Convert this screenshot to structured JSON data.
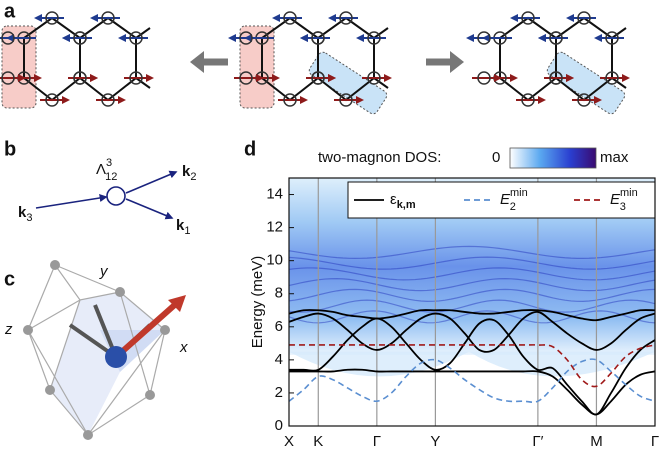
{
  "panels": {
    "a": "a",
    "b": "b",
    "c": "c",
    "d": "d"
  },
  "diagram_b": {
    "vertex": {
      "symbol": "Λ",
      "sup": "3",
      "sub": "12"
    },
    "k3": {
      "symbol": "k",
      "sub": "3"
    },
    "k2": {
      "symbol": "k",
      "sub": "2"
    },
    "k1": {
      "symbol": "k",
      "sub": "1"
    }
  },
  "diagram_c": {
    "y": "y",
    "z": "z",
    "x": "x"
  },
  "chart_data": {
    "type": "line",
    "ylabel": "Energy (meV)",
    "colorbar": {
      "title": "two-magnon DOS:",
      "min_label": "0",
      "max_label": "max"
    },
    "categories": [
      "X",
      null,
      "K",
      null,
      null,
      null,
      "Γ",
      null,
      null,
      null,
      "Y",
      null,
      null,
      null,
      null,
      null,
      null,
      "Γ′",
      null,
      null,
      null,
      "M",
      null,
      null,
      null,
      "Γ"
    ],
    "ylim": [
      0,
      15
    ],
    "yticks": [
      0,
      2,
      4,
      6,
      8,
      10,
      12,
      14
    ],
    "series": [
      {
        "name": "ε",
        "name_sub": "k,m",
        "color": "#000000",
        "dash": false,
        "values": [
          3.3,
          3.3,
          3.3,
          3.3,
          3.4,
          3.4,
          3.3,
          3.3,
          3.3,
          3.3,
          3.3,
          3.3,
          3.3,
          3.3,
          3.3,
          3.3,
          3.3,
          3.3,
          3.0,
          2.2,
          1.3,
          0.7,
          1.5,
          2.5,
          3.1,
          3.3
        ]
      },
      {
        "color": "#000000",
        "dash": false,
        "values": [
          3.4,
          3.4,
          3.4,
          4.2,
          5.2,
          6.0,
          6.5,
          6.0,
          5.0,
          4.0,
          3.4,
          3.8,
          5.0,
          6.2,
          6.4,
          5.5,
          4.2,
          3.4,
          3.5,
          2.5,
          1.5,
          0.7,
          2.0,
          3.5,
          4.6,
          5.2
        ]
      },
      {
        "color": "#000000",
        "dash": false,
        "values": [
          6.3,
          6.6,
          6.8,
          6.5,
          5.8,
          5.0,
          4.6,
          5.0,
          5.8,
          6.5,
          6.8,
          6.5,
          5.6,
          4.6,
          4.6,
          5.5,
          6.5,
          6.9,
          6.3,
          5.6,
          5.0,
          4.6,
          5.0,
          5.8,
          6.5,
          6.8
        ]
      },
      {
        "color": "#000000",
        "dash": false,
        "values": [
          6.8,
          7.0,
          7.0,
          6.9,
          6.7,
          6.6,
          6.5,
          6.6,
          6.8,
          7.0,
          7.0,
          7.0,
          6.9,
          6.8,
          6.8,
          6.9,
          7.0,
          7.0,
          6.9,
          6.7,
          6.5,
          6.4,
          6.6,
          6.8,
          7.0,
          7.0
        ]
      },
      {
        "name": "E",
        "name_sub": "2",
        "name_sup": "min",
        "color": "#5b8fd1",
        "dash": true,
        "values": [
          1.5,
          2.2,
          3.0,
          2.8,
          2.3,
          1.8,
          1.5,
          2.0,
          3.0,
          3.8,
          4.0,
          3.5,
          2.8,
          2.2,
          1.7,
          1.5,
          1.5,
          1.5,
          2.3,
          3.3,
          3.9,
          4.0,
          3.3,
          2.5,
          1.8,
          1.5
        ]
      },
      {
        "name": "E",
        "name_sub": "3",
        "name_sup": "min",
        "color": "#a01a1a",
        "dash": true,
        "values": [
          4.9,
          4.9,
          4.9,
          4.9,
          4.9,
          4.9,
          4.9,
          4.9,
          4.9,
          4.9,
          4.9,
          4.9,
          4.9,
          4.9,
          4.9,
          4.9,
          4.9,
          4.9,
          4.8,
          4.0,
          2.8,
          2.4,
          3.2,
          4.2,
          4.7,
          4.9
        ]
      }
    ]
  }
}
